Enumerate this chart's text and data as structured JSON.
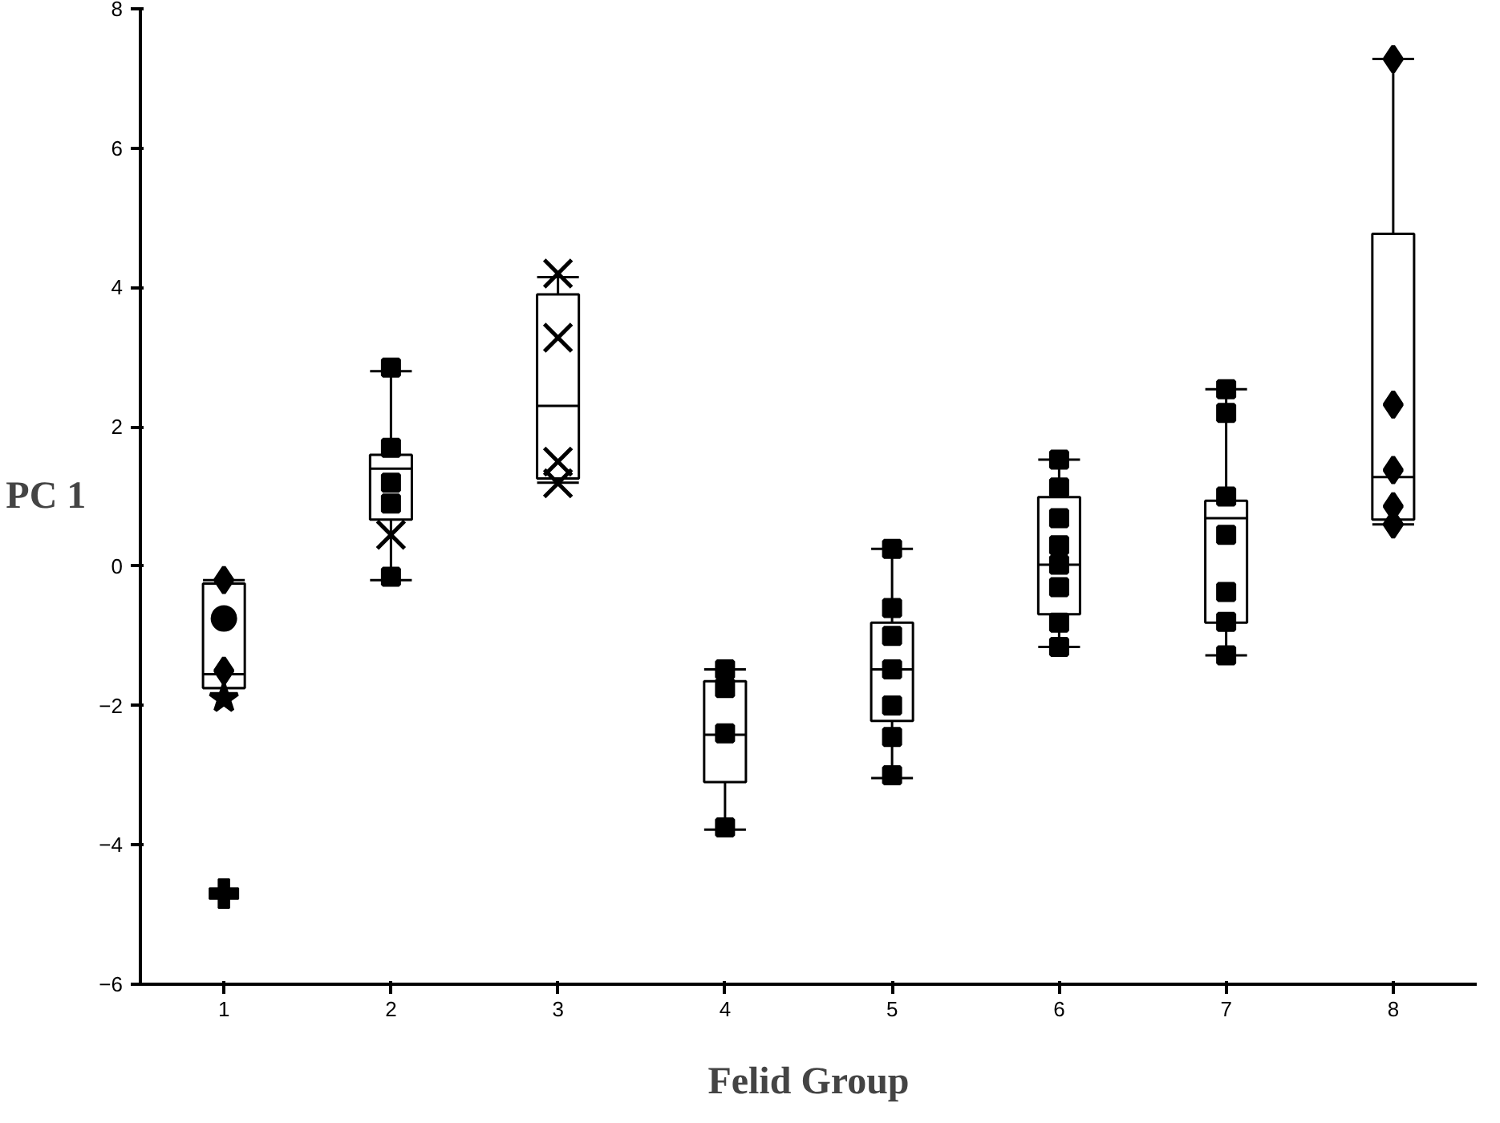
{
  "chart_data": {
    "type": "box",
    "xlabel": "Felid Group",
    "ylabel": "PC 1",
    "categories": [
      "1",
      "2",
      "3",
      "4",
      "5",
      "6",
      "7",
      "8"
    ],
    "boxes": [
      {
        "low": -1.75,
        "q1": -1.75,
        "median": -1.55,
        "q3": -0.25,
        "high": -0.2
      },
      {
        "low": -0.2,
        "q1": 0.67,
        "median": 1.4,
        "q3": 1.6,
        "high": 2.8
      },
      {
        "low": 1.2,
        "q1": 1.26,
        "median": 2.3,
        "q3": 3.9,
        "high": 4.15
      },
      {
        "low": -3.78,
        "q1": -3.1,
        "median": -2.42,
        "q3": -1.65,
        "high": -1.48
      },
      {
        "low": -3.04,
        "q1": -2.22,
        "median": -1.48,
        "q3": -0.81,
        "high": 0.25
      },
      {
        "low": -1.16,
        "q1": -0.69,
        "median": 0.02,
        "q3": 0.99,
        "high": 1.53
      },
      {
        "low": -1.28,
        "q1": -0.81,
        "median": 0.69,
        "q3": 0.94,
        "high": 2.54
      },
      {
        "low": 0.6,
        "q1": 0.67,
        "median": 1.28,
        "q3": 4.77,
        "high": 7.28
      }
    ],
    "series": [
      {
        "type": "scatter",
        "marker": "diamond",
        "color": "#000000",
        "x": [
          "1",
          "1"
        ],
        "values": [
          -0.2,
          -1.5
        ]
      },
      {
        "type": "scatter",
        "marker": "circle",
        "color": "#000000",
        "x": [
          "1"
        ],
        "values": [
          -0.75
        ]
      },
      {
        "type": "scatter",
        "marker": "star",
        "color": "#000000",
        "x": [
          "1"
        ],
        "values": [
          -1.9
        ]
      },
      {
        "type": "scatter",
        "marker": "cross",
        "color": "#000000",
        "x": [
          "1"
        ],
        "values": [
          -4.7
        ]
      },
      {
        "type": "scatter",
        "marker": "square",
        "color": "#000000",
        "x": [
          "2",
          "2",
          "2",
          "2",
          "2",
          "4",
          "4",
          "4",
          "4",
          "5",
          "5",
          "5",
          "5",
          "5",
          "5",
          "5",
          "6",
          "6",
          "6",
          "6",
          "6",
          "6",
          "6",
          "6",
          "7",
          "7",
          "7",
          "7",
          "7",
          "7",
          "7"
        ],
        "values": [
          2.85,
          1.7,
          1.2,
          0.9,
          -0.15,
          -1.48,
          -1.75,
          -2.4,
          -3.75,
          0.25,
          -0.6,
          -1.0,
          -1.48,
          -2.0,
          -2.45,
          -3.0,
          1.53,
          1.13,
          0.69,
          0.3,
          0.02,
          -0.3,
          -0.81,
          -1.16,
          2.54,
          2.2,
          1.0,
          0.45,
          -0.37,
          -0.8,
          -1.28
        ]
      },
      {
        "type": "scatter",
        "marker": "x",
        "color": "#000000",
        "x": [
          "2",
          "3",
          "3",
          "3",
          "3"
        ],
        "values": [
          0.45,
          4.2,
          3.28,
          1.5,
          1.19
        ]
      },
      {
        "type": "scatter",
        "marker": "diamond",
        "color": "#000000",
        "x": [
          "8",
          "8",
          "8",
          "8",
          "8"
        ],
        "values": [
          7.28,
          2.32,
          1.38,
          0.86,
          0.6
        ]
      }
    ],
    "ylim": [
      -6,
      8
    ],
    "yticks": [
      -6,
      -4,
      -2,
      0,
      2,
      4,
      6,
      8
    ],
    "grid": false
  }
}
